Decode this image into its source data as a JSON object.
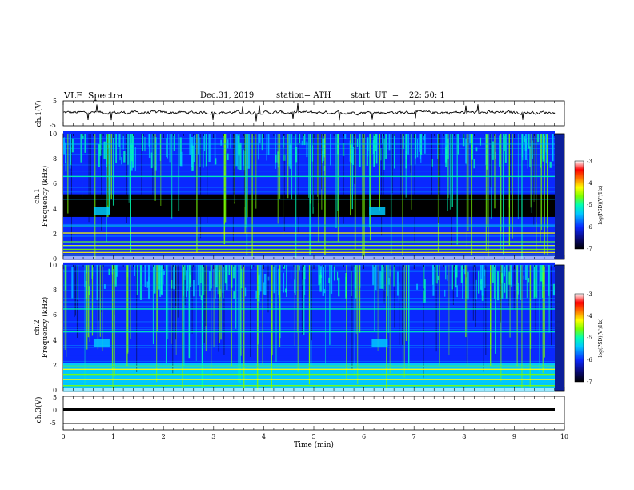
{
  "header": {
    "title": "VLF  Spectra",
    "date": "Dec.31, 2019",
    "station": "station= ATH",
    "start": "start  UT  =    22: 50: 1"
  },
  "colors": {
    "colormap": [
      "#000000",
      "#0a0a78",
      "#0a28ff",
      "#00c8ff",
      "#00ffb4",
      "#7cff00",
      "#ffff00",
      "#ff7800",
      "#ff0000",
      "#ffffff"
    ]
  },
  "chart_data": [
    {
      "panel": "ch1_waveform",
      "type": "line",
      "ylabel": "ch.1(V)",
      "ylim": [
        -5,
        5
      ],
      "yticks": [
        "5",
        "-5"
      ],
      "xlim": [
        0,
        10
      ],
      "series": [
        {
          "baseline_v": 0.3,
          "noise_v": 1.0
        }
      ]
    },
    {
      "panel": "ch1_spectrogram",
      "type": "heatmap",
      "ylabel": "ch.1\nFrequency  (kHz)",
      "ylim": [
        0,
        10
      ],
      "yticks": [
        "0",
        "2",
        "4",
        "6",
        "8",
        "10"
      ],
      "xlim": [
        0,
        9.8
      ],
      "colorbar": {
        "label": "log(PSD)(V²/Hz)",
        "range": [
          -7,
          -3
        ],
        "ticks": [
          "-3",
          "-4",
          "-5",
          "-6",
          "-7"
        ]
      },
      "features": {
        "quiet_band_khz": [
          3.3,
          5.2
        ],
        "strong_lines_khz": [
          0.35,
          0.55,
          0.8,
          1.1,
          1.4,
          2.1,
          2.6,
          6.6
        ],
        "bursts": [
          {
            "t_min": 0.75,
            "f_khz": 3.9
          },
          {
            "t_min": 6.25,
            "f_khz": 3.9
          }
        ]
      }
    },
    {
      "panel": "ch2_spectrogram",
      "type": "heatmap",
      "ylabel": "ch.2\nFrequency  (kHz)",
      "ylim": [
        0,
        10
      ],
      "yticks": [
        "0",
        "2",
        "4",
        "6",
        "8",
        "10"
      ],
      "xlim": [
        0,
        9.8
      ],
      "colorbar": {
        "label": "log(PSD)(V²/Hz)",
        "range": [
          -7,
          -3
        ],
        "ticks": [
          "-3",
          "-4",
          "-5",
          "-6",
          "-7"
        ]
      },
      "features": {
        "strong_lines_khz": [
          0.4,
          0.9,
          1.3,
          1.7,
          1.95,
          4.7,
          6.5
        ],
        "bursts": [
          {
            "t_min": 0.75,
            "f_khz": 3.8
          },
          {
            "t_min": 6.3,
            "f_khz": 3.8
          }
        ]
      }
    },
    {
      "panel": "ch3_waveform",
      "type": "line",
      "ylabel": "ch.3(V)",
      "ylim": [
        -5,
        5
      ],
      "yticks": [
        "5",
        "0",
        "-5"
      ],
      "xlim": [
        0,
        10
      ],
      "series": [
        {
          "constant_v": 0
        }
      ]
    }
  ],
  "xaxis": {
    "label": "Time  (min)",
    "ticks": [
      "0",
      "1",
      "2",
      "3",
      "4",
      "5",
      "6",
      "7",
      "8",
      "9",
      "10"
    ],
    "range": [
      0,
      10
    ]
  }
}
